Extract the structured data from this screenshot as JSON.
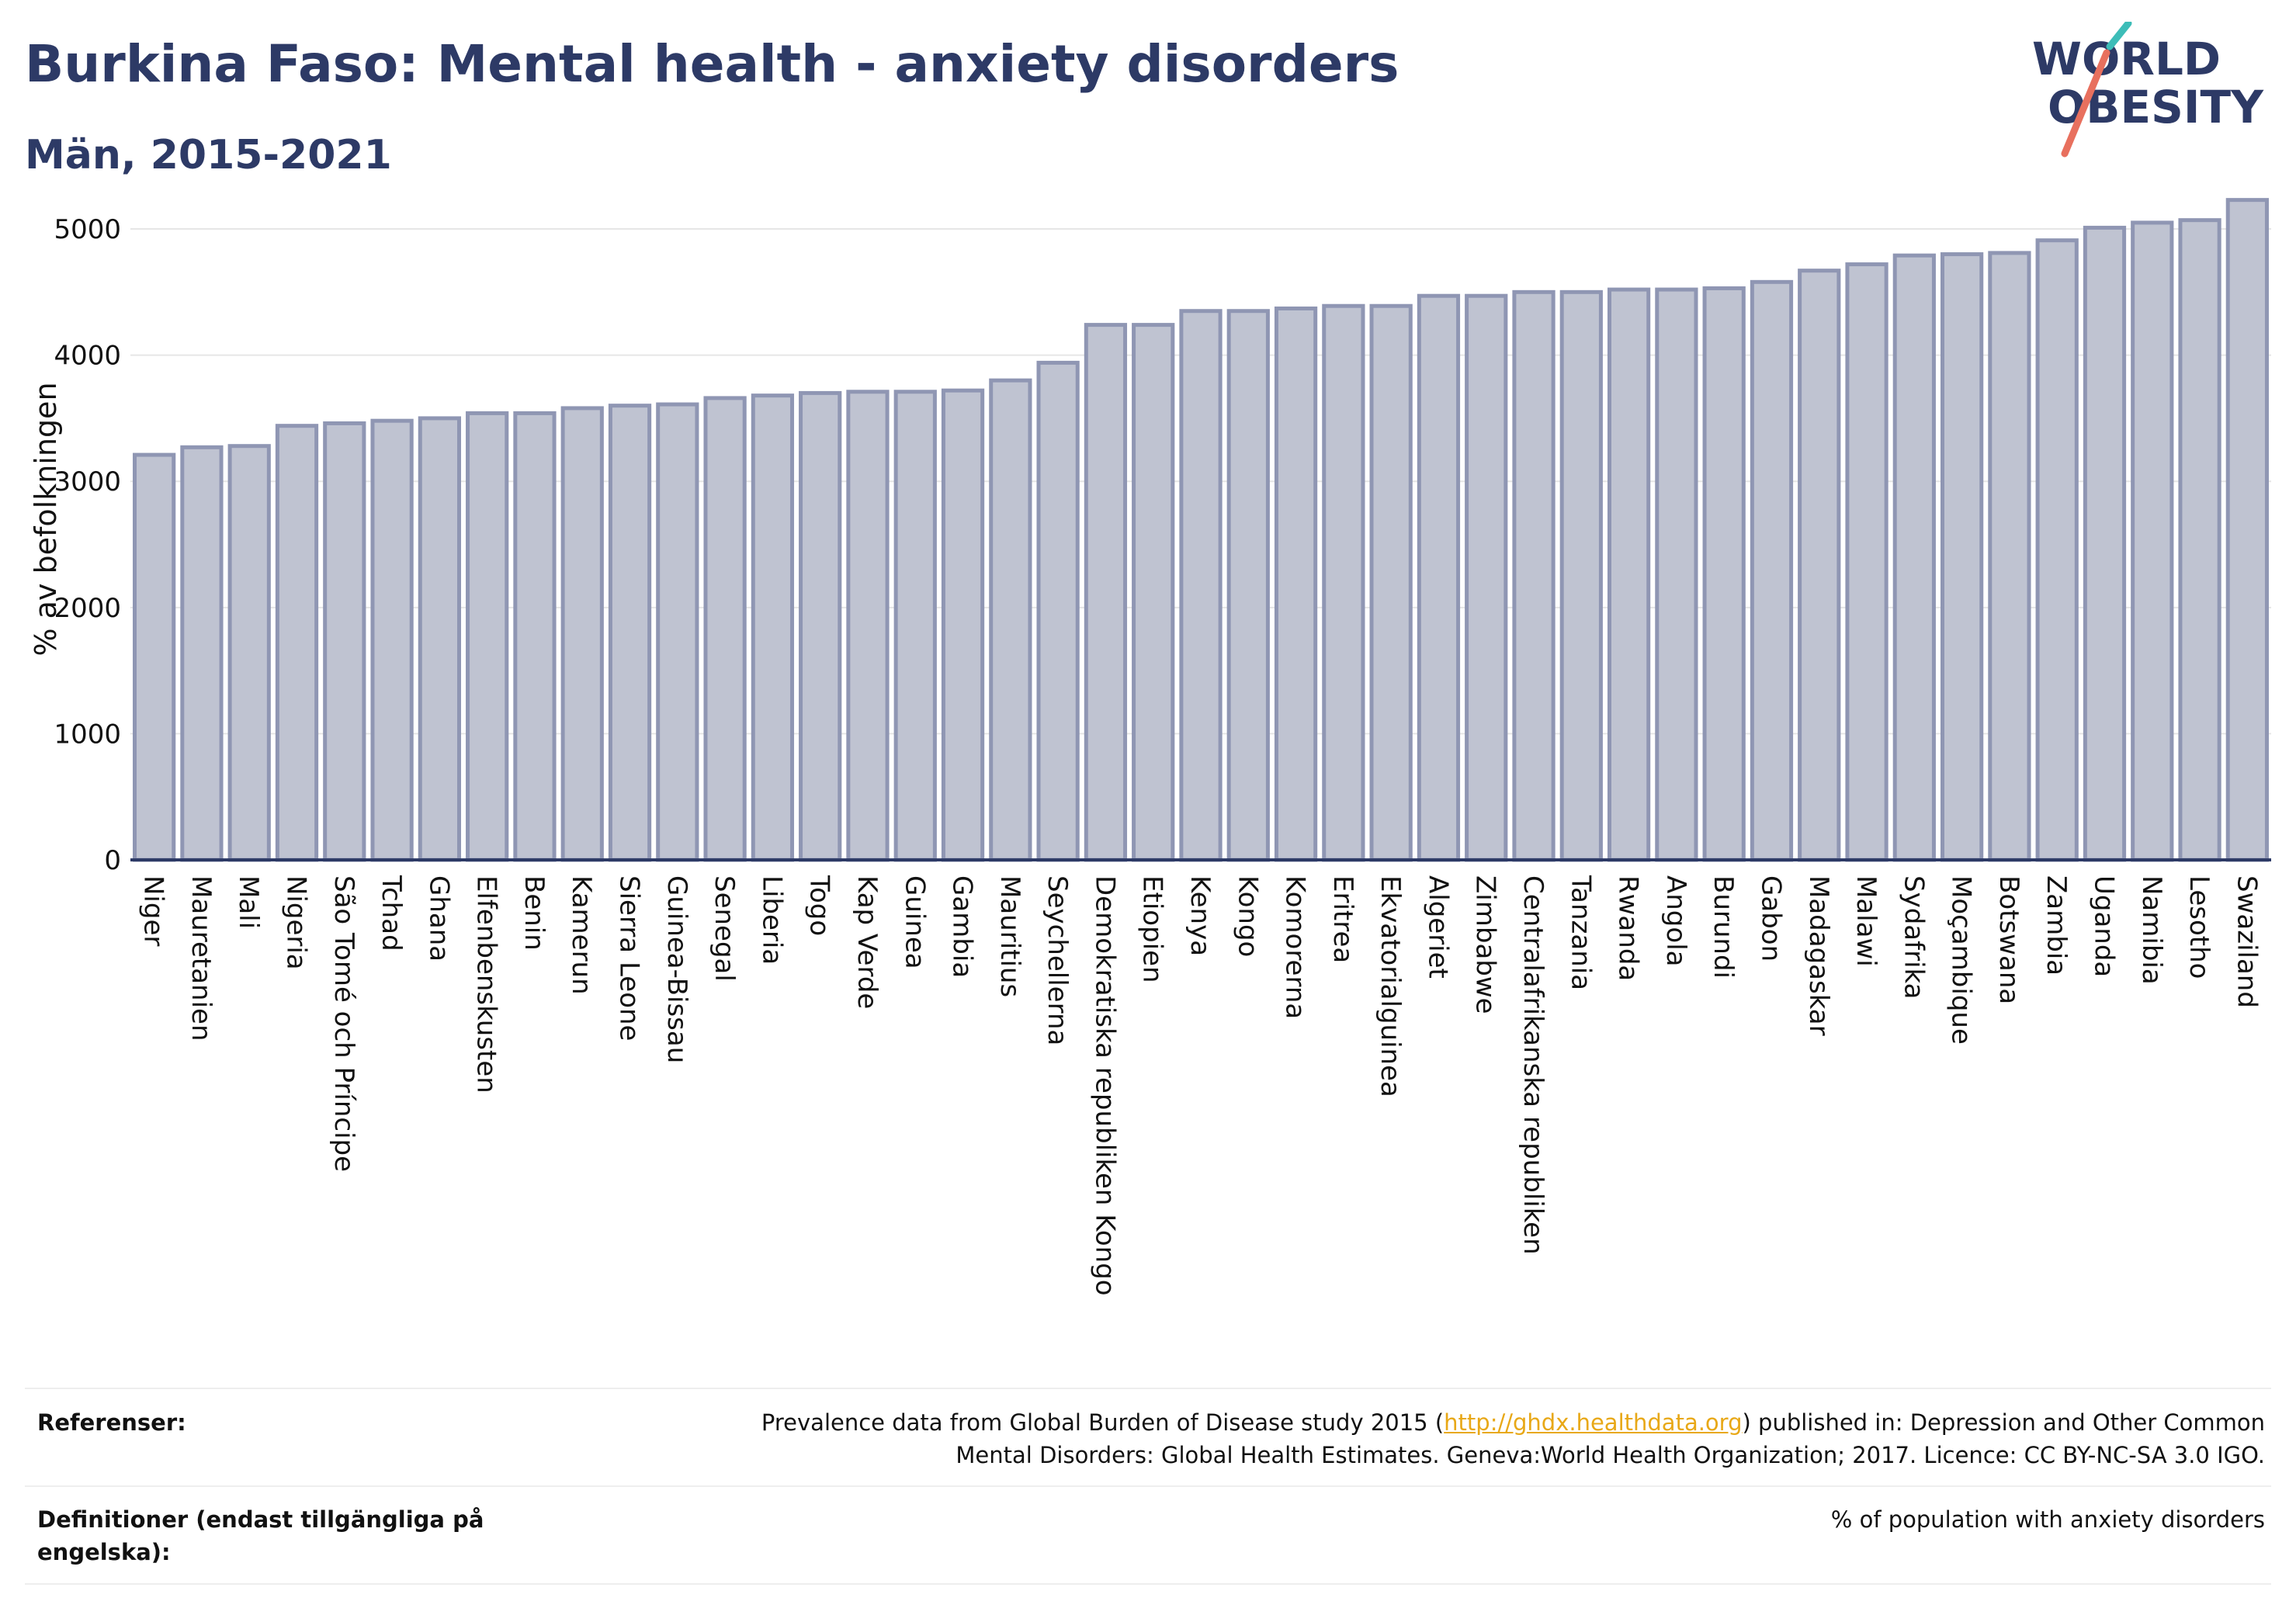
{
  "header": {
    "title": "Burkina Faso: Mental health - anxiety disorders",
    "subtitle": "Män, 2015-2021"
  },
  "logo": {
    "line1": "WORLD",
    "line2": "OBESITY",
    "colors": {
      "text": "#2d3a66",
      "slash_top": "#3dbdb8",
      "slash_bottom": "#e8705e"
    }
  },
  "colors": {
    "bar_fill": "#bfc3d1",
    "bar_stroke": "#8f96b3",
    "axis": "#2d3a66",
    "grid": "#e6e6e6"
  },
  "chart_data": {
    "type": "bar",
    "title": "Burkina Faso: Mental health - anxiety disorders",
    "subtitle": "Män, 2015-2021",
    "xlabel": "",
    "ylabel": "% av befolkningen",
    "ylim": [
      0,
      5400
    ],
    "yticks": [
      0,
      1000,
      2000,
      3000,
      4000,
      5000
    ],
    "grid": true,
    "categories": [
      "Niger",
      "Mauretanien",
      "Mali",
      "Nigeria",
      "São Tomé och Príncipe",
      "Tchad",
      "Ghana",
      "Elfenbenskusten",
      "Benin",
      "Kamerun",
      "Sierra Leone",
      "Guinea-Bissau",
      "Senegal",
      "Liberia",
      "Togo",
      "Kap Verde",
      "Guinea",
      "Gambia",
      "Mauritius",
      "Seychellerna",
      "Demokratiska republiken Kongo",
      "Etiopien",
      "Kenya",
      "Kongo",
      "Komorerna",
      "Eritrea",
      "Ekvatorialguinea",
      "Algeriet",
      "Zimbabwe",
      "Centralafrikanska republiken",
      "Tanzania",
      "Rwanda",
      "Angola",
      "Burundi",
      "Gabon",
      "Madagaskar",
      "Malawi",
      "Sydafrika",
      "Moçambique",
      "Botswana",
      "Zambia",
      "Uganda",
      "Namibia",
      "Lesotho",
      "Swaziland"
    ],
    "values": [
      3210,
      3270,
      3280,
      3440,
      3460,
      3480,
      3500,
      3540,
      3540,
      3580,
      3600,
      3610,
      3660,
      3680,
      3700,
      3710,
      3710,
      3720,
      3800,
      3940,
      4240,
      4240,
      4350,
      4350,
      4370,
      4390,
      4390,
      4470,
      4470,
      4500,
      4500,
      4520,
      4520,
      4530,
      4580,
      4670,
      4720,
      4790,
      4800,
      4810,
      4910,
      5010,
      5050,
      5070,
      5230
    ]
  },
  "footer": {
    "references_label": "Referenser:",
    "references_text_before": "Prevalence data from Global Burden of Disease study 2015 (",
    "references_link": "http://ghdx.healthdata.org",
    "references_text_after": ") published in: Depression and Other Common",
    "references_line2": "Mental Disorders: Global Health Estimates. Geneva:World Health Organization; 2017. Licence: CC BY-NC-SA 3.0 IGO.",
    "definitions_label_line1": "Definitioner (endast tillgängliga på",
    "definitions_label_line2": "engelska):",
    "definitions_text": "% of population with anxiety disorders"
  }
}
